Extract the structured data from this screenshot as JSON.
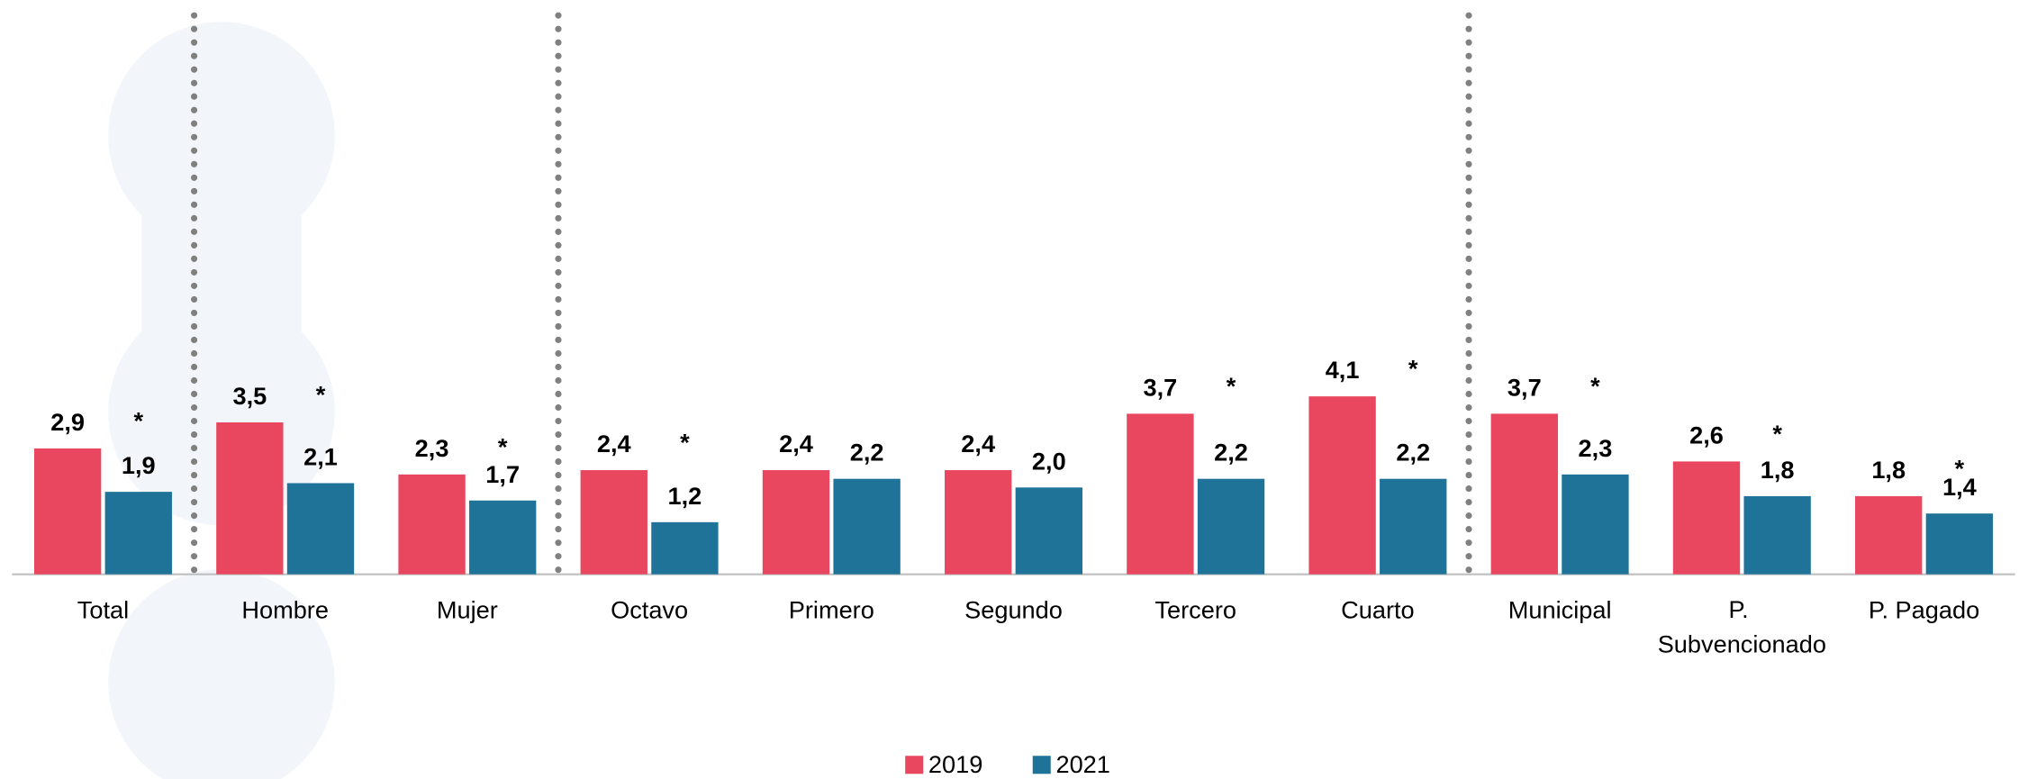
{
  "chart_data": {
    "type": "bar",
    "categories": [
      "Total",
      "Hombre",
      "Mujer",
      "Octavo",
      "Primero",
      "Segundo",
      "Tercero",
      "Cuarto",
      "Municipal",
      "P. Subvencionado",
      "P. Pagado"
    ],
    "series": [
      {
        "name": "2019",
        "color": "#e8475f",
        "values": [
          2.9,
          3.5,
          2.3,
          2.4,
          2.4,
          2.4,
          3.7,
          4.1,
          3.7,
          2.6,
          1.8
        ],
        "value_labels": [
          "2,9",
          "3,5",
          "2,3",
          "2,4",
          "2,4",
          "2,4",
          "3,7",
          "4,1",
          "3,7",
          "2,6",
          "1,8"
        ]
      },
      {
        "name": "2021",
        "color": "#1f7399",
        "values": [
          1.9,
          2.1,
          1.7,
          1.2,
          2.2,
          2.0,
          2.2,
          2.2,
          2.3,
          1.8,
          1.4
        ],
        "value_labels": [
          "1,9",
          "2,1",
          "1,7",
          "1,2",
          "2,2",
          "2,0",
          "2,2",
          "2,2",
          "2,3",
          "1,8",
          "1,4"
        ]
      }
    ],
    "significance": [
      "*",
      "*",
      "*",
      "*",
      null,
      null,
      "*",
      "*",
      "*",
      "*",
      "*"
    ],
    "legend": "bottom"
  }
}
